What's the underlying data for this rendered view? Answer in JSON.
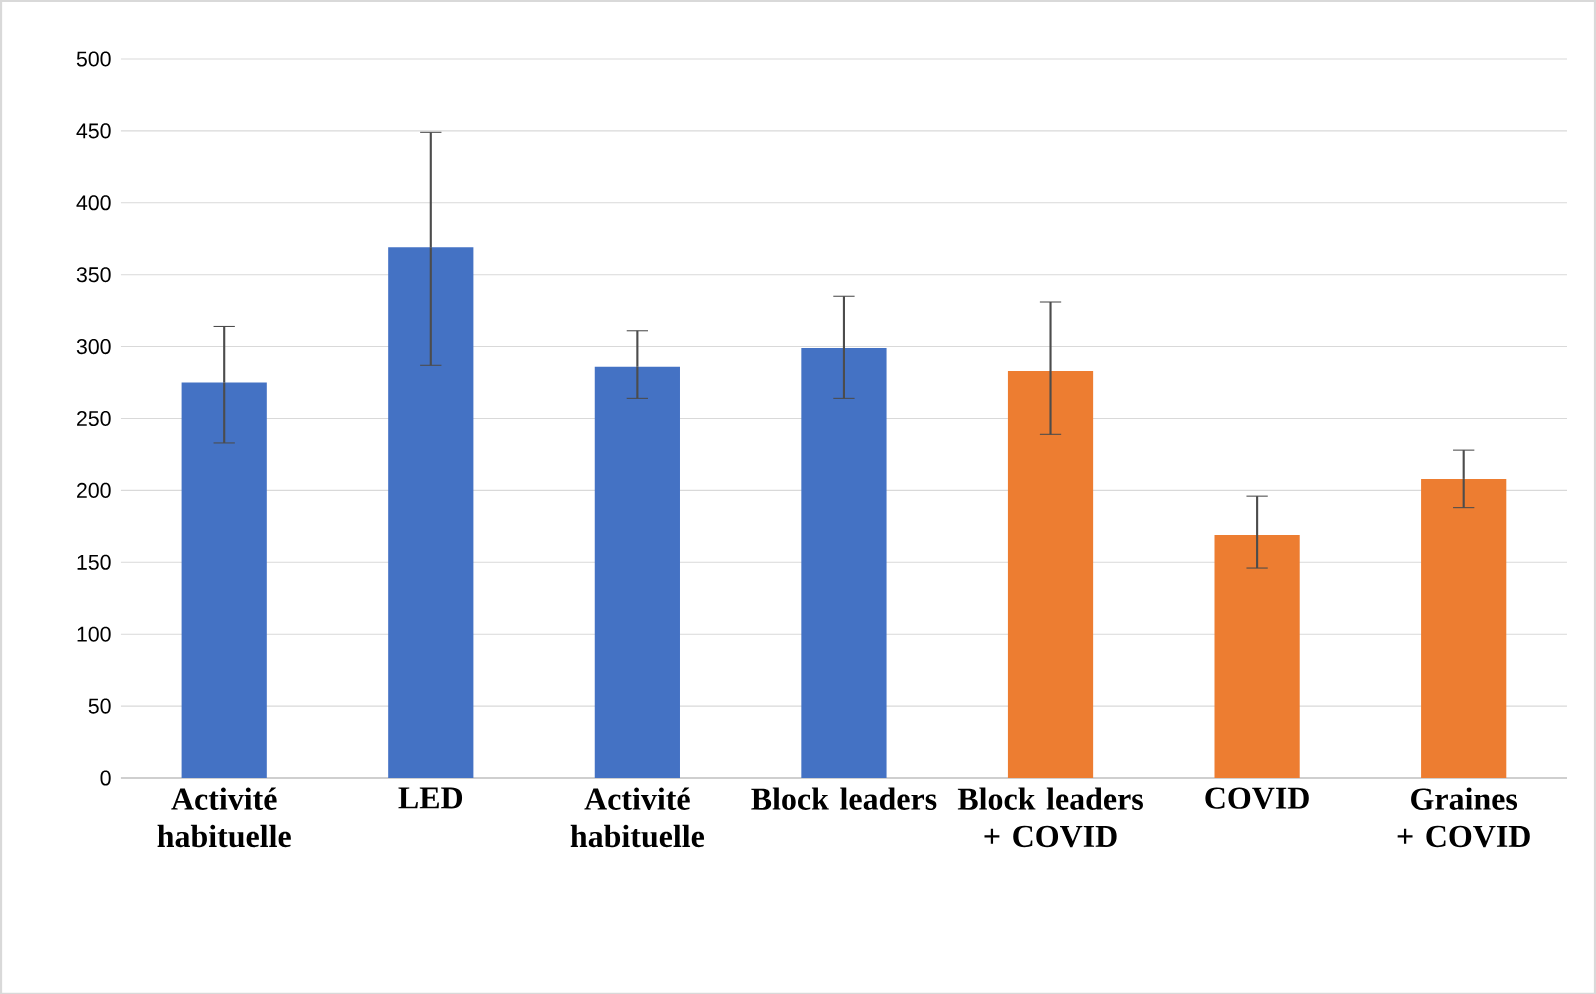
{
  "chart_data": {
    "type": "bar",
    "categories": [
      "Activité habituelle",
      "LED",
      "Activité habituelle",
      "Block leaders",
      "Block leaders + COVID",
      "COVID",
      "Graines + COVID"
    ],
    "values": [
      275,
      369,
      286,
      299,
      283,
      169,
      208
    ],
    "colors": [
      "#4472c4",
      "#4472c4",
      "#4472c4",
      "#4472c4",
      "#ed7d31",
      "#ed7d31",
      "#ed7d31"
    ],
    "errors": [
      [
        233,
        314
      ],
      [
        287,
        449
      ],
      [
        264,
        311
      ],
      [
        264,
        335
      ],
      [
        239,
        331
      ],
      [
        146,
        196
      ],
      [
        188,
        228
      ]
    ],
    "ylim": [
      0,
      500
    ],
    "yticks": [
      0,
      50,
      100,
      150,
      200,
      250,
      300,
      350,
      400,
      450,
      500
    ],
    "grid": "y"
  }
}
